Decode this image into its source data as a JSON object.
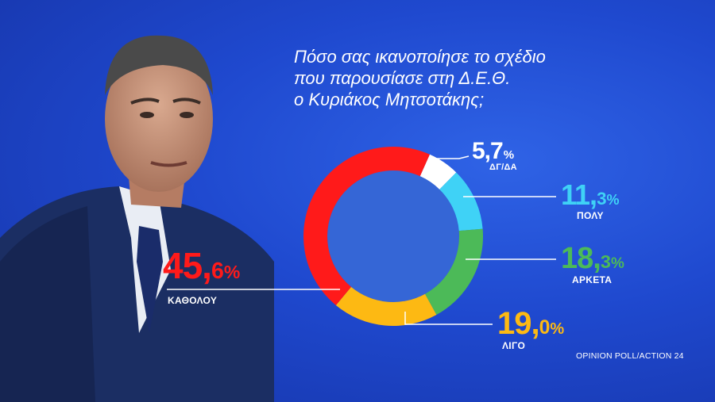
{
  "title_lines": [
    "Πόσο σας ικανοποίησε το σχέδιο",
    "που παρουσίασε στη Δ.Ε.Θ.",
    "ο Κυριάκος Μητσοτάκης;"
  ],
  "source": "OPINION POLL/ACTION 24",
  "colors": {
    "background": "#1f49cf",
    "donut_center": "#3566d6",
    "kathol": "#ff1a1a",
    "ligo": "#fdb913",
    "arketa": "#4cba58",
    "poly": "#3fd2f6",
    "dgda": "#ffffff"
  },
  "chart_data": {
    "type": "pie",
    "style": "donut",
    "title": "Πόσο σας ικανοποίησε το σχέδιο που παρουσίασε στη Δ.Ε.Θ. ο Κυριάκος Μητσοτάκης;",
    "slices": [
      {
        "label": "ΔΓ/ΔΑ",
        "int": "5,7",
        "dec": "",
        "value": 5.7,
        "color": "#ffffff",
        "text_color": "#ffffff"
      },
      {
        "label": "ΠΟΛΥ",
        "int": "11,",
        "dec": "3",
        "value": 11.3,
        "color": "#3fd2f6",
        "text_color": "#3fd2f6"
      },
      {
        "label": "ΑΡΚΕΤΑ",
        "int": "18,",
        "dec": "3",
        "value": 18.3,
        "color": "#4cba58",
        "text_color": "#4cba58"
      },
      {
        "label": "ΛΙΓΟ",
        "int": "19,",
        "dec": "0",
        "value": 19.0,
        "color": "#fdb913",
        "text_color": "#fdb913"
      },
      {
        "label": "ΚΑΘΟΛΟΥ",
        "int": "45,",
        "dec": "6",
        "value": 45.6,
        "color": "#ff1a1a",
        "text_color": "#ff1a1a"
      }
    ],
    "unit": "%"
  }
}
